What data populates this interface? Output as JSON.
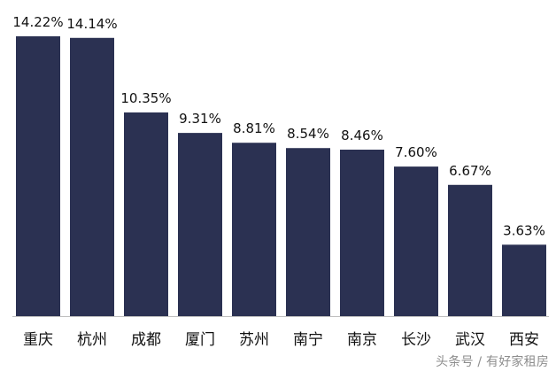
{
  "chart_data": {
    "type": "bar",
    "categories": [
      "重庆",
      "杭州",
      "成都",
      "厦门",
      "苏州",
      "南宁",
      "南京",
      "长沙",
      "武汉",
      "西安"
    ],
    "values": [
      14.22,
      14.14,
      10.35,
      9.31,
      8.81,
      8.54,
      8.46,
      7.6,
      6.67,
      3.63
    ],
    "value_labels": [
      "14.22%",
      "14.14%",
      "10.35%",
      "9.31%",
      "8.81%",
      "8.54%",
      "8.46%",
      "7.60%",
      "6.67%",
      "3.63%"
    ],
    "ylim": [
      0,
      14.22
    ],
    "grid": false,
    "legend": "none",
    "bar_color": "#2b3152",
    "axis_color": "#bfbfbf",
    "text_color": "#111111"
  },
  "watermark": {
    "text": "头条号 / 有好家租房"
  }
}
